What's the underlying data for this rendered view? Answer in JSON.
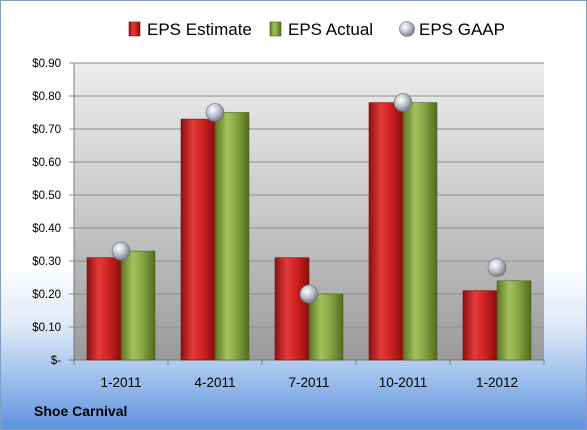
{
  "company": "Shoe Carnival",
  "chart_data": {
    "type": "bar",
    "categories": [
      "1-2011",
      "4-2011",
      "7-2011",
      "10-2011",
      "1-2012"
    ],
    "series": [
      {
        "name": "EPS Estimate",
        "values": [
          0.31,
          0.73,
          0.31,
          0.78,
          0.21
        ],
        "color": "#cc1f1f"
      },
      {
        "name": "EPS Actual",
        "values": [
          0.33,
          0.75,
          0.2,
          0.78,
          0.24
        ],
        "color": "#86a444"
      },
      {
        "name": "EPS GAAP",
        "values": [
          0.33,
          0.75,
          0.2,
          0.78,
          0.28
        ],
        "color": "#9aa3ad",
        "marker": "sphere"
      }
    ],
    "yticks": [
      "$-",
      "$0.10",
      "$0.20",
      "$0.30",
      "$0.40",
      "$0.50",
      "$0.60",
      "$0.70",
      "$0.80",
      "$0.90"
    ],
    "ylim": [
      0,
      0.9
    ],
    "grid": true,
    "legend_position": "top"
  }
}
